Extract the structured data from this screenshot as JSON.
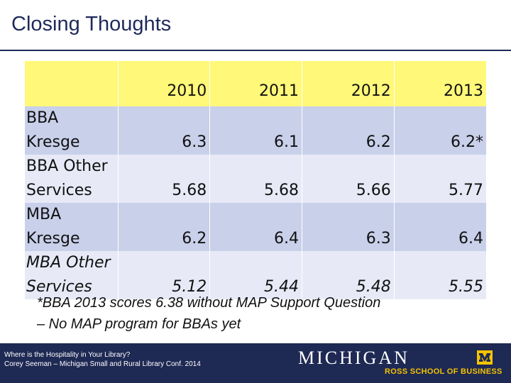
{
  "slide": {
    "title": "Closing Thoughts"
  },
  "table": {
    "headers": [
      "",
      "2010",
      "2011",
      "2012",
      "2013"
    ],
    "rows": [
      {
        "label": "BBA Kresge",
        "values": [
          "6.3",
          "6.1",
          "6.2",
          "6.2*"
        ]
      },
      {
        "label": "BBA Other Services",
        "values": [
          "5.68",
          "5.68",
          "5.66",
          "5.77"
        ]
      },
      {
        "label": "MBA Kresge",
        "values": [
          "6.2",
          "6.4",
          "6.3",
          "6.4"
        ]
      },
      {
        "label": "MBA Other Services",
        "values": [
          "5.12",
          "5.44",
          "5.48",
          "5.55"
        ]
      }
    ]
  },
  "footnote": {
    "line1": "*BBA 2013 scores 6.38 without MAP Support Question",
    "line2": "– No MAP program for BBAs yet"
  },
  "footer": {
    "line1": "Where is the Hospitality in Your Library?",
    "line2": "Corey Seeman – Michigan Small and Rural Library Conf. 2014",
    "logo_word": "MICHIGAN",
    "logo_sub": "ROSS SCHOOL OF BUSINESS"
  },
  "colors": {
    "header_bg": "#fff879",
    "row_dark": "#c9d0ea",
    "row_light": "#e7eaf6",
    "brand_navy": "#1e2954",
    "brand_maize": "#f5c400"
  }
}
